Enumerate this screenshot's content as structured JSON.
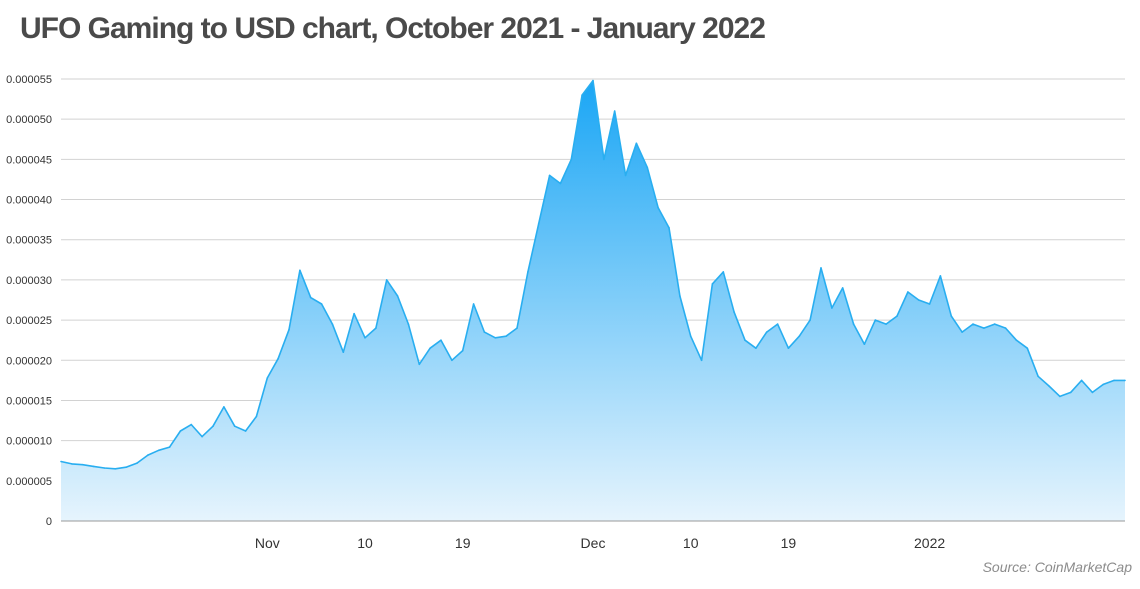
{
  "chart_data": {
    "type": "area",
    "title": "UFO Gaming to USD chart, October 2021 - January 2022",
    "source": "Source: CoinMarketCap",
    "xlabel": "",
    "ylabel": "",
    "ylim": [
      0,
      5.5e-05
    ],
    "y_ticks": [
      "0",
      "0.000005",
      "0.000010",
      "0.000015",
      "0.000020",
      "0.000025",
      "0.000030",
      "0.000035",
      "0.000040",
      "0.000045",
      "0.000050",
      "0.000055"
    ],
    "x_ticks": [
      {
        "label": "Nov",
        "date": "2021-11-01"
      },
      {
        "label": "10",
        "date": "2021-11-10"
      },
      {
        "label": "19",
        "date": "2021-11-19"
      },
      {
        "label": "Dec",
        "date": "2021-12-01"
      },
      {
        "label": "10",
        "date": "2021-12-10"
      },
      {
        "label": "19",
        "date": "2021-12-19"
      },
      {
        "label": "2022",
        "date": "2022-01-01"
      }
    ],
    "xlim": [
      "2021-10-13",
      "2022-01-19"
    ],
    "grid": true,
    "line_color": "#29aef0",
    "fill_top_color": "#1aa6f5",
    "fill_bottom_color": "#e6f4fd",
    "series": [
      {
        "points": [
          [
            "2021-10-13",
            7.4e-06
          ],
          [
            "2021-10-14",
            7.1e-06
          ],
          [
            "2021-10-15",
            7e-06
          ],
          [
            "2021-10-16",
            6.8e-06
          ],
          [
            "2021-10-17",
            6.6e-06
          ],
          [
            "2021-10-18",
            6.5e-06
          ],
          [
            "2021-10-19",
            6.7e-06
          ],
          [
            "2021-10-20",
            7.2e-06
          ],
          [
            "2021-10-21",
            8.2e-06
          ],
          [
            "2021-10-22",
            8.8e-06
          ],
          [
            "2021-10-23",
            9.2e-06
          ],
          [
            "2021-10-24",
            1.12e-05
          ],
          [
            "2021-10-25",
            1.2e-05
          ],
          [
            "2021-10-26",
            1.05e-05
          ],
          [
            "2021-10-27",
            1.18e-05
          ],
          [
            "2021-10-28",
            1.42e-05
          ],
          [
            "2021-10-29",
            1.18e-05
          ],
          [
            "2021-10-30",
            1.12e-05
          ],
          [
            "2021-10-31",
            1.3e-05
          ],
          [
            "2021-11-01",
            1.78e-05
          ],
          [
            "2021-11-02",
            2.02e-05
          ],
          [
            "2021-11-03",
            2.38e-05
          ],
          [
            "2021-11-04",
            3.12e-05
          ],
          [
            "2021-11-05",
            2.78e-05
          ],
          [
            "2021-11-06",
            2.7e-05
          ],
          [
            "2021-11-07",
            2.45e-05
          ],
          [
            "2021-11-08",
            2.1e-05
          ],
          [
            "2021-11-09",
            2.58e-05
          ],
          [
            "2021-11-10",
            2.28e-05
          ],
          [
            "2021-11-11",
            2.4e-05
          ],
          [
            "2021-11-12",
            3e-05
          ],
          [
            "2021-11-13",
            2.8e-05
          ],
          [
            "2021-11-14",
            2.45e-05
          ],
          [
            "2021-11-15",
            1.95e-05
          ],
          [
            "2021-11-16",
            2.15e-05
          ],
          [
            "2021-11-17",
            2.25e-05
          ],
          [
            "2021-11-18",
            2e-05
          ],
          [
            "2021-11-19",
            2.12e-05
          ],
          [
            "2021-11-20",
            2.7e-05
          ],
          [
            "2021-11-21",
            2.35e-05
          ],
          [
            "2021-11-22",
            2.28e-05
          ],
          [
            "2021-11-23",
            2.3e-05
          ],
          [
            "2021-11-24",
            2.4e-05
          ],
          [
            "2021-11-25",
            3.1e-05
          ],
          [
            "2021-11-26",
            3.7e-05
          ],
          [
            "2021-11-27",
            4.3e-05
          ],
          [
            "2021-11-28",
            4.2e-05
          ],
          [
            "2021-11-29",
            4.5e-05
          ],
          [
            "2021-11-30",
            5.3e-05
          ],
          [
            "2021-12-01",
            5.48e-05
          ],
          [
            "2021-12-02",
            4.5e-05
          ],
          [
            "2021-12-03",
            5.1e-05
          ],
          [
            "2021-12-04",
            4.3e-05
          ],
          [
            "2021-12-05",
            4.7e-05
          ],
          [
            "2021-12-06",
            4.4e-05
          ],
          [
            "2021-12-07",
            3.9e-05
          ],
          [
            "2021-12-08",
            3.65e-05
          ],
          [
            "2021-12-09",
            2.8e-05
          ],
          [
            "2021-12-10",
            2.3e-05
          ],
          [
            "2021-12-11",
            2e-05
          ],
          [
            "2021-12-12",
            2.95e-05
          ],
          [
            "2021-12-13",
            3.1e-05
          ],
          [
            "2021-12-14",
            2.6e-05
          ],
          [
            "2021-12-15",
            2.25e-05
          ],
          [
            "2021-12-16",
            2.15e-05
          ],
          [
            "2021-12-17",
            2.35e-05
          ],
          [
            "2021-12-18",
            2.45e-05
          ],
          [
            "2021-12-19",
            2.15e-05
          ],
          [
            "2021-12-20",
            2.3e-05
          ],
          [
            "2021-12-21",
            2.5e-05
          ],
          [
            "2021-12-22",
            3.15e-05
          ],
          [
            "2021-12-23",
            2.65e-05
          ],
          [
            "2021-12-24",
            2.9e-05
          ],
          [
            "2021-12-25",
            2.45e-05
          ],
          [
            "2021-12-26",
            2.2e-05
          ],
          [
            "2021-12-27",
            2.5e-05
          ],
          [
            "2021-12-28",
            2.45e-05
          ],
          [
            "2021-12-29",
            2.55e-05
          ],
          [
            "2021-12-30",
            2.85e-05
          ],
          [
            "2021-12-31",
            2.75e-05
          ],
          [
            "2022-01-01",
            2.7e-05
          ],
          [
            "2022-01-02",
            3.05e-05
          ],
          [
            "2022-01-03",
            2.55e-05
          ],
          [
            "2022-01-04",
            2.35e-05
          ],
          [
            "2022-01-05",
            2.45e-05
          ],
          [
            "2022-01-06",
            2.4e-05
          ],
          [
            "2022-01-07",
            2.45e-05
          ],
          [
            "2022-01-08",
            2.4e-05
          ],
          [
            "2022-01-09",
            2.25e-05
          ],
          [
            "2022-01-10",
            2.15e-05
          ],
          [
            "2022-01-11",
            1.8e-05
          ],
          [
            "2022-01-12",
            1.68e-05
          ],
          [
            "2022-01-13",
            1.55e-05
          ],
          [
            "2022-01-14",
            1.6e-05
          ],
          [
            "2022-01-15",
            1.75e-05
          ],
          [
            "2022-01-16",
            1.6e-05
          ],
          [
            "2022-01-17",
            1.7e-05
          ],
          [
            "2022-01-18",
            1.75e-05
          ],
          [
            "2022-01-19",
            1.75e-05
          ]
        ]
      }
    ]
  }
}
